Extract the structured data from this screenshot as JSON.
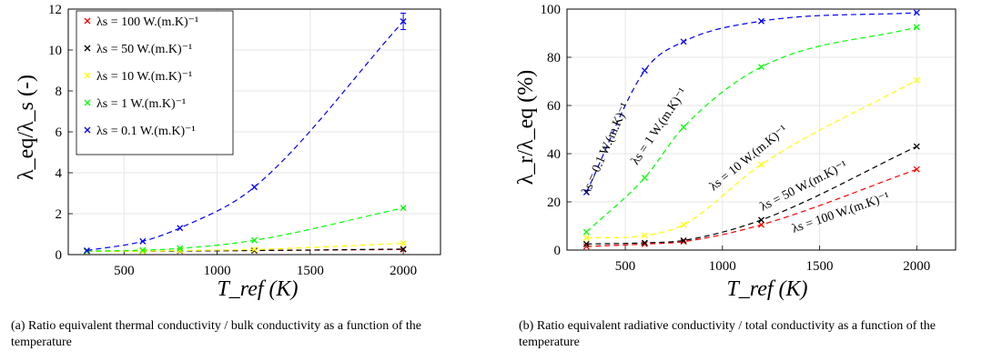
{
  "colors": {
    "s100": "#ff0000",
    "s50": "#000000",
    "s10": "#ffff00",
    "s1": "#00ff00",
    "s01": "#0000ff",
    "grid": "#e6e6e6"
  },
  "chart_data": [
    {
      "id": "a",
      "type": "line",
      "xlabel": "T_ref (K)",
      "ylabel": "λ_eq/λ_s (-)",
      "xlim": [
        200,
        2200
      ],
      "ylim": [
        0,
        12
      ],
      "xticks": [
        500,
        1000,
        1500,
        2000
      ],
      "yticks": [
        0,
        2,
        4,
        6,
        8,
        10,
        12
      ],
      "grid": true,
      "legend_position": "top-left",
      "series": [
        {
          "name": "λs = 100 W.(m.K)⁻¹",
          "key": "s100",
          "x": [
            300,
            600,
            800,
            1200,
            2000
          ],
          "y": [
            0.16,
            0.17,
            0.18,
            0.2,
            0.25
          ]
        },
        {
          "name": "λs = 50 W.(m.K)⁻¹",
          "key": "s50",
          "x": [
            300,
            600,
            800,
            1200,
            2000
          ],
          "y": [
            0.16,
            0.17,
            0.18,
            0.2,
            0.27
          ]
        },
        {
          "name": "λs = 10 W.(m.K)⁻¹",
          "key": "s10",
          "x": [
            300,
            600,
            800,
            1200,
            2000
          ],
          "y": [
            0.16,
            0.17,
            0.2,
            0.25,
            0.55
          ]
        },
        {
          "name": "λs = 1 W.(m.K)⁻¹",
          "key": "s1",
          "x": [
            300,
            600,
            800,
            1200,
            2000
          ],
          "y": [
            0.17,
            0.22,
            0.3,
            0.7,
            2.28
          ]
        },
        {
          "name": "λs = 0.1 W.(m.K)⁻¹",
          "key": "s01",
          "x": [
            300,
            600,
            800,
            1200,
            2000
          ],
          "y": [
            0.2,
            0.65,
            1.3,
            3.3,
            11.4
          ],
          "errorbar_at_last": [
            11.0,
            11.8
          ]
        }
      ]
    },
    {
      "id": "b",
      "type": "line",
      "xlabel": "T_ref (K)",
      "ylabel": "λ_r/λ_eq (%)",
      "xlim": [
        200,
        2200
      ],
      "ylim": [
        0,
        100
      ],
      "xticks": [
        500,
        1000,
        1500,
        2000
      ],
      "yticks": [
        0,
        20,
        40,
        60,
        80,
        100
      ],
      "grid": true,
      "series": [
        {
          "name": "λs = 100 W.(m.K)⁻¹",
          "key": "s100",
          "x": [
            300,
            600,
            800,
            1200,
            2000
          ],
          "y": [
            1.5,
            2.5,
            3.5,
            10.5,
            33.5
          ]
        },
        {
          "name": "λs = 50 W.(m.K)⁻¹",
          "key": "s50",
          "x": [
            300,
            600,
            800,
            1200,
            2000
          ],
          "y": [
            2.5,
            3,
            4,
            12.5,
            43
          ]
        },
        {
          "name": "λs = 10 W.(m.K)⁻¹",
          "key": "s10",
          "x": [
            300,
            600,
            800,
            1200,
            2000
          ],
          "y": [
            5,
            6,
            10.5,
            35.5,
            70.5
          ]
        },
        {
          "name": "λs = 1 W.(m.K)⁻¹",
          "key": "s1",
          "x": [
            300,
            600,
            800,
            1200,
            2000
          ],
          "y": [
            7.5,
            30,
            51,
            76,
            92.5
          ]
        },
        {
          "name": "λs = 0.1 W.(m.K)⁻¹",
          "key": "s01",
          "x": [
            300,
            600,
            800,
            1200,
            2000
          ],
          "y": [
            24,
            74.5,
            86.5,
            95,
            98.5
          ]
        }
      ],
      "annotations": [
        "λs = 0.1 W.(m.K)⁻¹",
        "λs = 1 W.(m.K)⁻¹",
        "λs = 10 W.(m.K)⁻¹",
        "λs = 50 W.(m.K)⁻¹",
        "λs = 100 W.(m.K)⁻¹"
      ]
    }
  ],
  "captions": {
    "a": "(a) Ratio equivalent thermal conductivity / bulk conductivity as a function of the temperature",
    "b": "(b) Ratio equivalent radiative conductivity / total conductivity as a function of the temperature"
  }
}
